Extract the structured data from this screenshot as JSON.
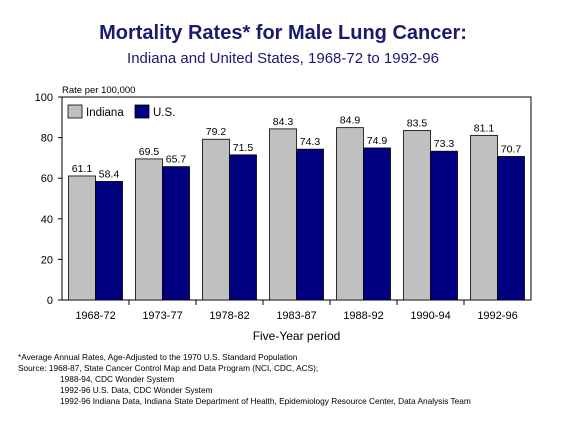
{
  "chart_data": {
    "type": "bar",
    "title": "Mortality Rates* for Male Lung Cancer:",
    "subtitle": "Indiana and United States, 1968-72 to 1992-96",
    "ylabel": "Rate per 100,000",
    "xlabel": "Five-Year period",
    "ylim": [
      0,
      100
    ],
    "yticks": [
      0,
      20,
      40,
      60,
      80,
      100
    ],
    "categories": [
      "1968-72",
      "1973-77",
      "1978-82",
      "1983-87",
      "1988-92",
      "1990-94",
      "1992-96"
    ],
    "series": [
      {
        "name": "Indiana",
        "color": "#c0c0c0",
        "values": [
          61.1,
          69.5,
          79.2,
          84.3,
          84.9,
          83.5,
          81.1
        ]
      },
      {
        "name": "U.S.",
        "color": "#000080",
        "values": [
          58.4,
          65.7,
          71.5,
          74.3,
          74.9,
          73.3,
          70.7
        ]
      }
    ],
    "legend_position": "top-left",
    "grid": false
  },
  "notes": {
    "line1": "*Average Annual Rates, Age-Adjusted to the 1970 U.S. Standard Population",
    "line2": "Source:  1968-87, State Cancer Control Map and Data Program (NCI, CDC, ACS);",
    "line3": "1988-94, CDC Wonder System",
    "line4": "1992-96 U.S. Data, CDC Wonder System",
    "line5": "1992-96 Indiana Data, Indiana State Department of Health, Epidemiology Resource Center, Data Analysis Team"
  }
}
